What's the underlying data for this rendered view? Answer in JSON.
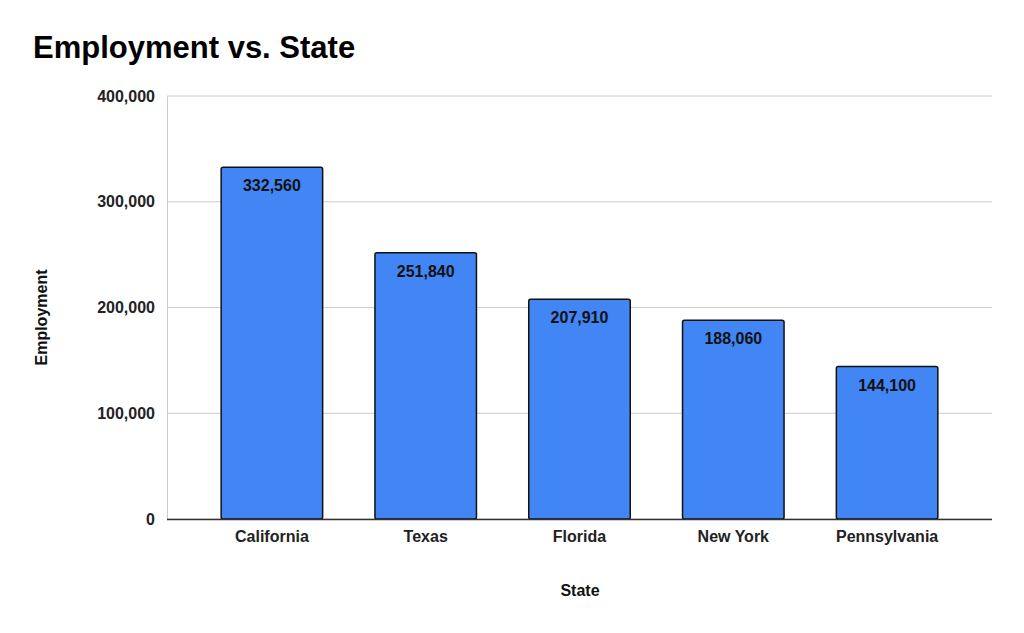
{
  "chart_data": {
    "type": "bar",
    "title": "Employment vs. State",
    "x_label": "State",
    "y_label": "Employment",
    "categories": [
      "California",
      "Texas",
      "Florida",
      "New York",
      "Pennsylvania"
    ],
    "values": [
      332560,
      251840,
      207910,
      188060,
      144100
    ],
    "value_labels": [
      "332,560",
      "251,840",
      "207,910",
      "188,060",
      "144,100"
    ],
    "color": "#4285f4",
    "ylim": [
      0,
      400000
    ],
    "yticks": [
      0,
      {
        "value": 100000,
        "label": "100,000"
      },
      {
        "value": 200000,
        "label": "200,000"
      },
      {
        "value": 300000,
        "label": "300,000"
      },
      {
        "value": 400000,
        "label": "400,000"
      }
    ],
    "grid": true,
    "data_labels": true
  }
}
